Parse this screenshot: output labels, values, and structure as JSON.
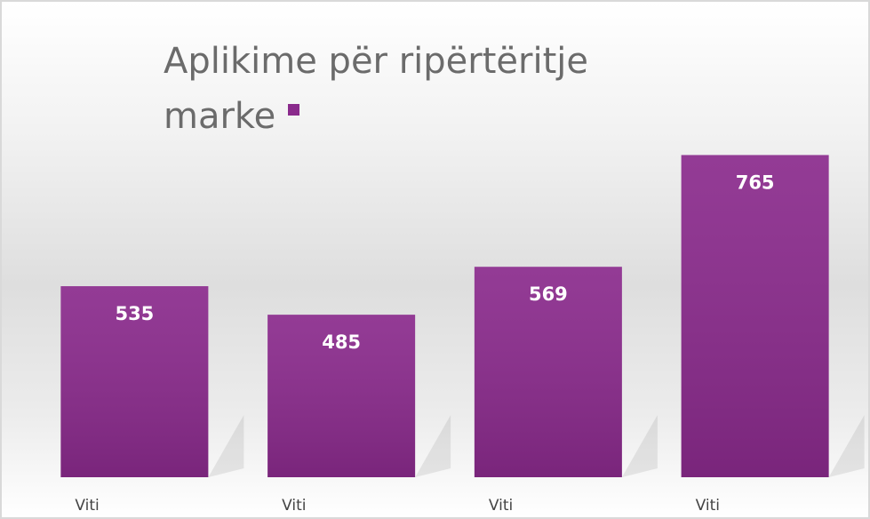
{
  "chart_data": {
    "type": "bar",
    "title": "Aplikime për ripërtëritje marke",
    "categories": [
      "Viti",
      "Viti",
      "Viti",
      "Viti"
    ],
    "values": [
      535,
      485,
      569,
      765
    ],
    "color": "#8a2a8c",
    "ylim": [
      200,
      800
    ]
  }
}
